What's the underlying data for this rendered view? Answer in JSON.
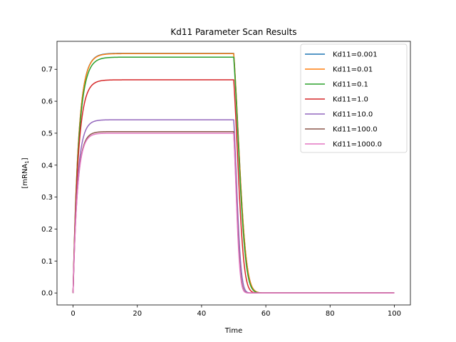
{
  "chart_data": {
    "type": "line",
    "title": "Kd11 Parameter Scan Results",
    "xlabel": "Time",
    "ylabel_main": "[mRNA",
    "ylabel_sub": "1",
    "ylabel_close": "]",
    "xlim": [
      -5,
      105
    ],
    "ylim": [
      -0.0375,
      0.7875
    ],
    "xticks": [
      0,
      20,
      40,
      60,
      80,
      100
    ],
    "xtick_labels": [
      "0",
      "20",
      "40",
      "60",
      "80",
      "100"
    ],
    "yticks": [
      0.0,
      0.1,
      0.2,
      0.3,
      0.4,
      0.5,
      0.6,
      0.7
    ],
    "ytick_labels": [
      "0.0",
      "0.1",
      "0.2",
      "0.3",
      "0.4",
      "0.5",
      "0.6",
      "0.7"
    ],
    "grid": false,
    "legend_position": "top-right",
    "switch_time": 50,
    "end_time": 100,
    "series": [
      {
        "name": "Kd11=0.001",
        "color": "#1f77b4",
        "plateau": 0.75,
        "rise_tau": 1.7,
        "decay_tau": 2.2
      },
      {
        "name": "Kd11=0.01",
        "color": "#ff7f0e",
        "plateau": 0.749,
        "rise_tau": 1.7,
        "decay_tau": 2.2
      },
      {
        "name": "Kd11=0.1",
        "color": "#2ca02c",
        "plateau": 0.738,
        "rise_tau": 1.75,
        "decay_tau": 2.1
      },
      {
        "name": "Kd11=1.0",
        "color": "#d62728",
        "plateau": 0.667,
        "rise_tau": 1.6,
        "decay_tau": 1.8
      },
      {
        "name": "Kd11=10.0",
        "color": "#9467bd",
        "plateau": 0.542,
        "rise_tau": 1.4,
        "decay_tau": 1.3
      },
      {
        "name": "Kd11=100.0",
        "color": "#8c564b",
        "plateau": 0.505,
        "rise_tau": 1.35,
        "decay_tau": 1.15
      },
      {
        "name": "Kd11=1000.0",
        "color": "#e377c2",
        "plateau": 0.5,
        "rise_tau": 1.35,
        "decay_tau": 1.1
      }
    ]
  }
}
